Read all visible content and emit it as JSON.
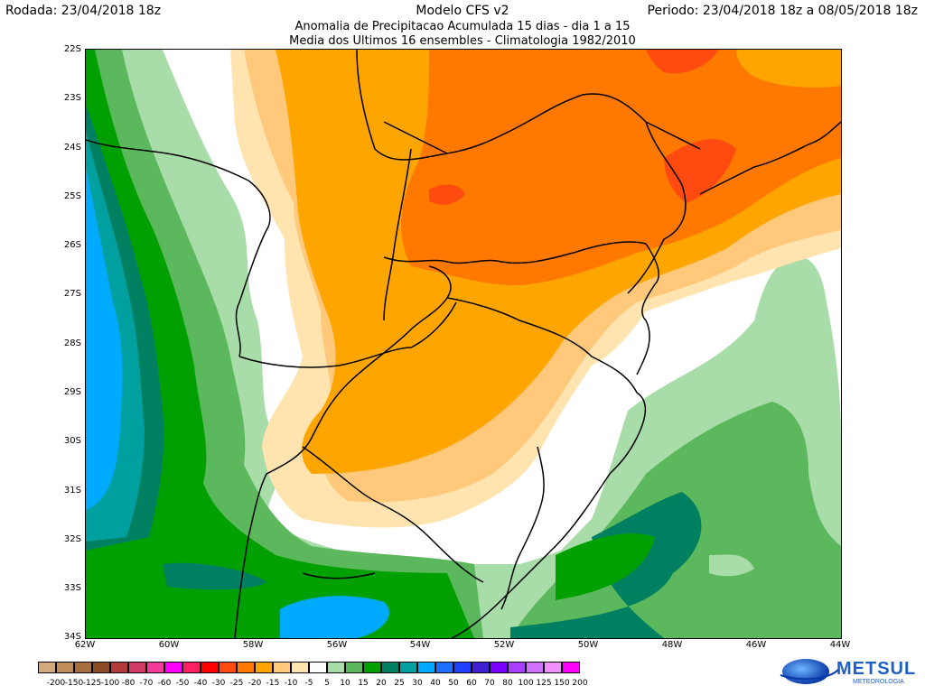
{
  "header": {
    "rodada": "Rodada: 23/04/2018 18z",
    "model": "Modelo CFS v2",
    "periodo": "Periodo: 23/04/2018 18z a 08/05/2018 18z",
    "subtitle1": "Anomalia de Precipitacao Acumulada 15 dias - dia 1 a 15",
    "subtitle2": "Media dos Ultimos 16 ensembles - Climatologia 1982/2010"
  },
  "map": {
    "lat_ticks": [
      "22S",
      "23S",
      "24S",
      "25S",
      "26S",
      "27S",
      "28S",
      "29S",
      "30S",
      "31S",
      "32S",
      "33S",
      "34S"
    ],
    "lon_ticks": [
      "62W",
      "60W",
      "58W",
      "56W",
      "54W",
      "52W",
      "50W",
      "48W",
      "46W",
      "44W"
    ]
  },
  "legend": {
    "labels": [
      "-200",
      "-150",
      "-125",
      "-100",
      "-80",
      "-70",
      "-60",
      "-50",
      "-40",
      "-30",
      "-25",
      "-20",
      "-15",
      "-10",
      "-5",
      "5",
      "10",
      "15",
      "20",
      "25",
      "30",
      "40",
      "50",
      "60",
      "70",
      "80",
      "100",
      "125",
      "150",
      "200"
    ],
    "colors": [
      "#d3a87c",
      "#c08f5c",
      "#a86f3e",
      "#8a4a24",
      "#b23a3a",
      "#d03a63",
      "#f33a9a",
      "#ff00ff",
      "#ff2060",
      "#ff0000",
      "#ff4a10",
      "#ff7800",
      "#ffa500",
      "#ffc87a",
      "#ffe4b0",
      "#ffffff",
      "#a8dca8",
      "#5cb85c",
      "#00a000",
      "#008060",
      "#00a0a0",
      "#00aaff",
      "#1e6eff",
      "#2040ff",
      "#4020d0",
      "#7a00ff",
      "#aa40ff",
      "#d070ff",
      "#f090ff",
      "#ff00ff"
    ]
  },
  "logo": {
    "brand": "METSUL",
    "tagline": "METEOROLOGIA"
  }
}
